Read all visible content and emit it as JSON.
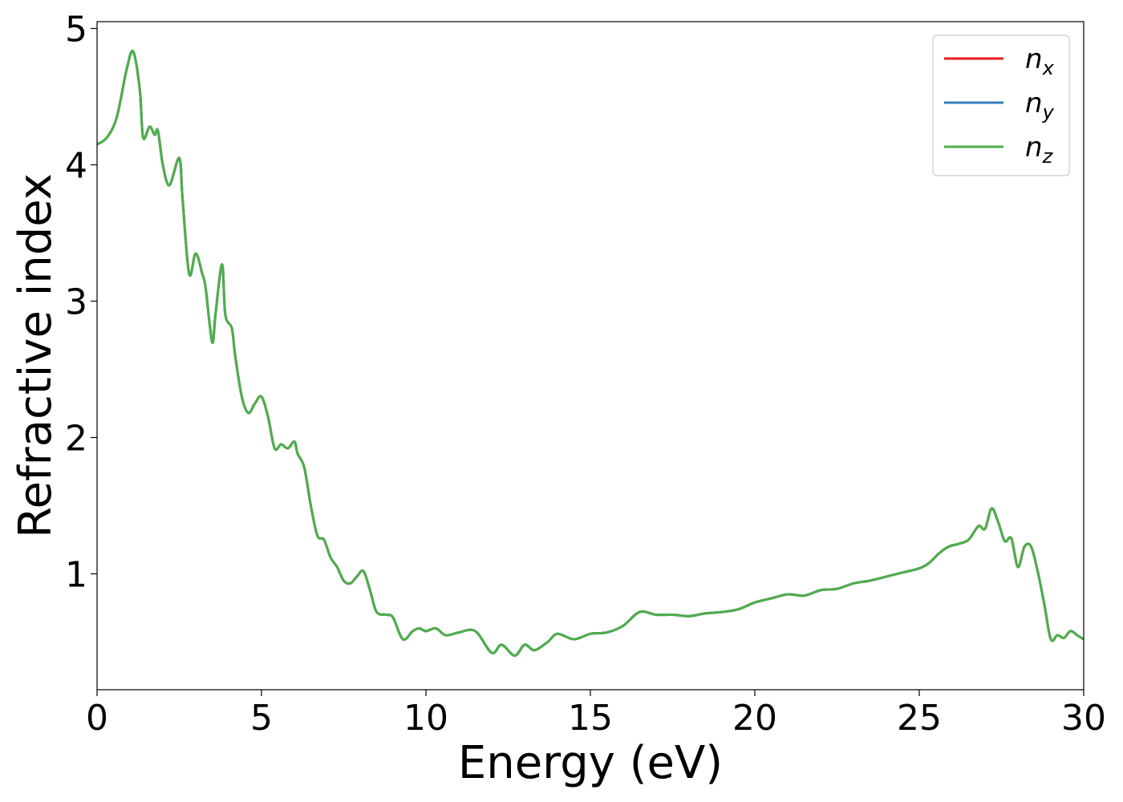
{
  "chart_data": {
    "type": "line",
    "xlabel": "Energy (eV)",
    "ylabel": "Refractive index",
    "xlim": [
      0,
      30
    ],
    "ylim": [
      0.15,
      5.05
    ],
    "xticks": [
      0,
      5,
      10,
      15,
      20,
      25,
      30
    ],
    "yticks": [
      1,
      2,
      3,
      4,
      5
    ],
    "xtick_labels": [
      "0",
      "5",
      "10",
      "15",
      "20",
      "25",
      "30"
    ],
    "ytick_labels": [
      "1",
      "2",
      "3",
      "4",
      "5"
    ],
    "grid": false,
    "legend_position": "top-right",
    "x": [
      0,
      0.3,
      0.6,
      0.9,
      1.1,
      1.3,
      1.4,
      1.6,
      1.75,
      1.85,
      2.0,
      2.2,
      2.5,
      2.6,
      2.8,
      3.0,
      3.2,
      3.3,
      3.5,
      3.6,
      3.8,
      3.9,
      4.1,
      4.2,
      4.4,
      4.6,
      4.8,
      5.0,
      5.2,
      5.4,
      5.6,
      5.8,
      6.0,
      6.1,
      6.3,
      6.5,
      6.7,
      6.9,
      7.1,
      7.3,
      7.5,
      7.7,
      7.9,
      8.1,
      8.3,
      8.5,
      8.8,
      9.0,
      9.3,
      9.6,
      9.8,
      10.0,
      10.3,
      10.6,
      11.0,
      11.5,
      12.0,
      12.3,
      12.7,
      13.0,
      13.3,
      13.7,
      14.0,
      14.5,
      15.0,
      15.5,
      16.0,
      16.5,
      17.0,
      17.5,
      18.0,
      18.5,
      19.0,
      19.5,
      20.0,
      20.5,
      21.0,
      21.5,
      22.0,
      22.5,
      23.0,
      23.5,
      24.0,
      24.5,
      25.0,
      25.3,
      25.6,
      25.9,
      26.2,
      26.5,
      26.8,
      27.0,
      27.2,
      27.4,
      27.6,
      27.8,
      28.0,
      28.2,
      28.4,
      28.6,
      28.8,
      29.0,
      29.2,
      29.4,
      29.6,
      29.8,
      30.0
    ],
    "series": [
      {
        "name": "n_x",
        "label": "n",
        "subscript": "x",
        "color": "#e41a1c",
        "values": [
          4.15,
          4.2,
          4.35,
          4.7,
          4.83,
          4.55,
          4.2,
          4.28,
          4.22,
          4.25,
          4.0,
          3.85,
          4.05,
          3.75,
          3.2,
          3.35,
          3.2,
          3.1,
          2.7,
          2.9,
          3.27,
          2.9,
          2.8,
          2.6,
          2.3,
          2.18,
          2.25,
          2.3,
          2.15,
          1.92,
          1.95,
          1.92,
          1.97,
          1.88,
          1.78,
          1.5,
          1.28,
          1.25,
          1.12,
          1.05,
          0.95,
          0.93,
          0.98,
          1.02,
          0.88,
          0.72,
          0.7,
          0.68,
          0.52,
          0.58,
          0.6,
          0.58,
          0.6,
          0.55,
          0.57,
          0.58,
          0.42,
          0.48,
          0.4,
          0.48,
          0.44,
          0.5,
          0.56,
          0.52,
          0.56,
          0.57,
          0.62,
          0.72,
          0.7,
          0.7,
          0.69,
          0.71,
          0.72,
          0.74,
          0.79,
          0.82,
          0.85,
          0.84,
          0.88,
          0.89,
          0.93,
          0.95,
          0.98,
          1.01,
          1.04,
          1.08,
          1.15,
          1.2,
          1.22,
          1.25,
          1.35,
          1.33,
          1.48,
          1.38,
          1.24,
          1.26,
          1.05,
          1.2,
          1.2,
          1.02,
          0.78,
          0.52,
          0.55,
          0.53,
          0.58,
          0.55,
          0.52
        ]
      },
      {
        "name": "n_y",
        "label": "n",
        "subscript": "y",
        "color": "#377eb8",
        "values": [
          4.15,
          4.2,
          4.35,
          4.7,
          4.83,
          4.55,
          4.2,
          4.28,
          4.22,
          4.25,
          4.0,
          3.85,
          4.05,
          3.75,
          3.2,
          3.35,
          3.2,
          3.1,
          2.7,
          2.9,
          3.27,
          2.9,
          2.8,
          2.6,
          2.3,
          2.18,
          2.25,
          2.3,
          2.15,
          1.92,
          1.95,
          1.92,
          1.97,
          1.88,
          1.78,
          1.5,
          1.28,
          1.25,
          1.12,
          1.05,
          0.95,
          0.93,
          0.98,
          1.02,
          0.88,
          0.72,
          0.7,
          0.68,
          0.52,
          0.58,
          0.6,
          0.58,
          0.6,
          0.55,
          0.57,
          0.58,
          0.42,
          0.48,
          0.4,
          0.48,
          0.44,
          0.5,
          0.56,
          0.52,
          0.56,
          0.57,
          0.62,
          0.72,
          0.7,
          0.7,
          0.69,
          0.71,
          0.72,
          0.74,
          0.79,
          0.82,
          0.85,
          0.84,
          0.88,
          0.89,
          0.93,
          0.95,
          0.98,
          1.01,
          1.04,
          1.08,
          1.15,
          1.2,
          1.22,
          1.25,
          1.35,
          1.33,
          1.48,
          1.38,
          1.24,
          1.26,
          1.05,
          1.2,
          1.2,
          1.02,
          0.78,
          0.52,
          0.55,
          0.53,
          0.58,
          0.55,
          0.52
        ]
      },
      {
        "name": "n_z",
        "label": "n",
        "subscript": "z",
        "color": "#4daf4a",
        "values": [
          4.15,
          4.2,
          4.35,
          4.7,
          4.83,
          4.55,
          4.2,
          4.28,
          4.22,
          4.25,
          4.0,
          3.85,
          4.05,
          3.75,
          3.2,
          3.35,
          3.2,
          3.1,
          2.7,
          2.9,
          3.27,
          2.9,
          2.8,
          2.6,
          2.3,
          2.18,
          2.25,
          2.3,
          2.15,
          1.92,
          1.95,
          1.92,
          1.97,
          1.88,
          1.78,
          1.5,
          1.28,
          1.25,
          1.12,
          1.05,
          0.95,
          0.93,
          0.98,
          1.02,
          0.88,
          0.72,
          0.7,
          0.68,
          0.52,
          0.58,
          0.6,
          0.58,
          0.6,
          0.55,
          0.57,
          0.58,
          0.42,
          0.48,
          0.4,
          0.48,
          0.44,
          0.5,
          0.56,
          0.52,
          0.56,
          0.57,
          0.62,
          0.72,
          0.7,
          0.7,
          0.69,
          0.71,
          0.72,
          0.74,
          0.79,
          0.82,
          0.85,
          0.84,
          0.88,
          0.89,
          0.93,
          0.95,
          0.98,
          1.01,
          1.04,
          1.08,
          1.15,
          1.2,
          1.22,
          1.25,
          1.35,
          1.33,
          1.48,
          1.38,
          1.24,
          1.26,
          1.05,
          1.2,
          1.2,
          1.02,
          0.78,
          0.52,
          0.55,
          0.53,
          0.58,
          0.55,
          0.52
        ]
      }
    ]
  }
}
